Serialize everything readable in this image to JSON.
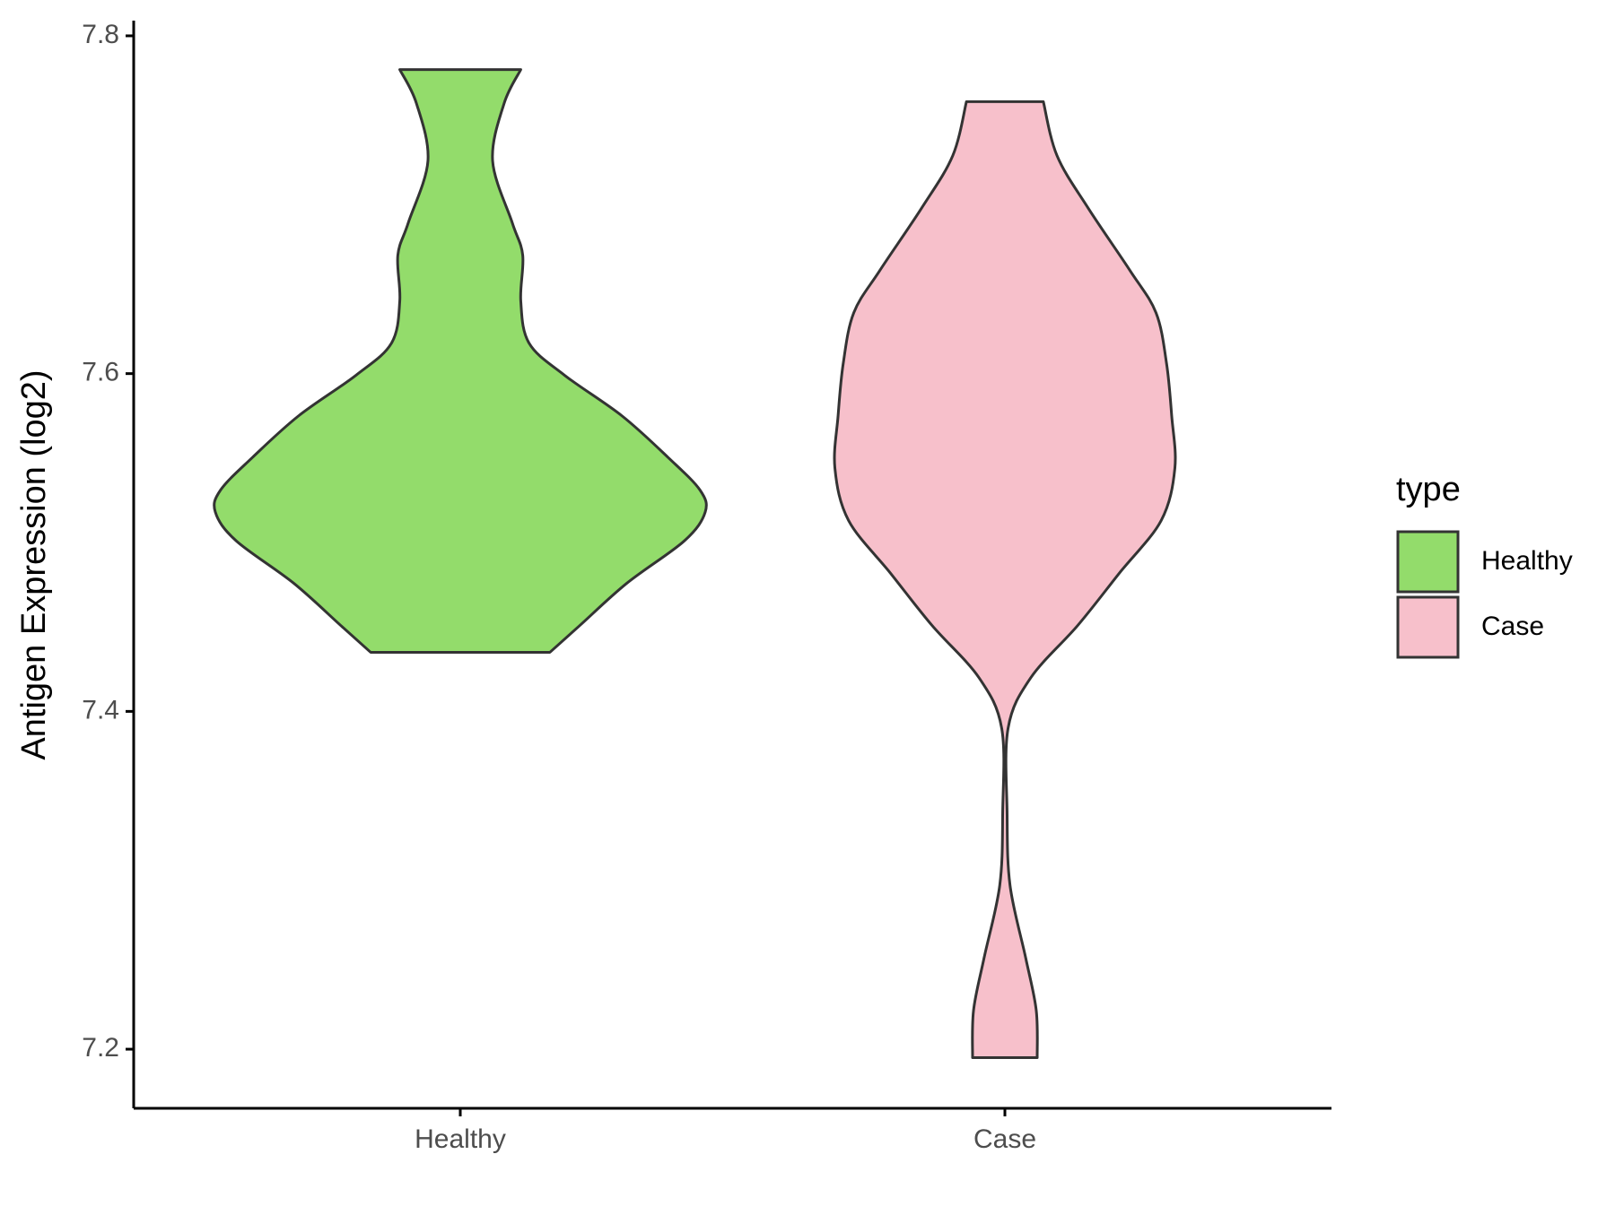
{
  "chart_data": {
    "type": "violin",
    "y_label": "Antigen Expression (log2)",
    "categories": [
      "Healthy",
      "Case"
    ],
    "ylim": [
      7.165,
      7.809
    ],
    "yticks": [
      7.2,
      7.4,
      7.6,
      7.8
    ],
    "legend_title": "type",
    "legend_position": "right",
    "series": [
      {
        "name": "Healthy",
        "color": "#93dc6b",
        "values": [
          7.78,
          7.76,
          7.726,
          7.689,
          7.67,
          7.643,
          7.618,
          7.599,
          7.575,
          7.55,
          7.531,
          7.518,
          7.501,
          7.476,
          7.451,
          7.435
        ],
        "density": [
          0.247,
          0.179,
          0.132,
          0.213,
          0.255,
          0.247,
          0.281,
          0.426,
          0.66,
          0.851,
          0.979,
          1.0,
          0.915,
          0.681,
          0.489,
          0.366
        ]
      },
      {
        "name": "Case",
        "color": "#f7c0cb",
        "values": [
          7.761,
          7.729,
          7.698,
          7.661,
          7.636,
          7.606,
          7.575,
          7.544,
          7.513,
          7.482,
          7.451,
          7.42,
          7.39,
          7.34,
          7.297,
          7.254,
          7.223,
          7.195
        ],
        "density": [
          0.157,
          0.213,
          0.34,
          0.511,
          0.617,
          0.66,
          0.681,
          0.694,
          0.638,
          0.468,
          0.298,
          0.106,
          0.013,
          0.009,
          0.021,
          0.085,
          0.128,
          0.132
        ]
      }
    ]
  }
}
